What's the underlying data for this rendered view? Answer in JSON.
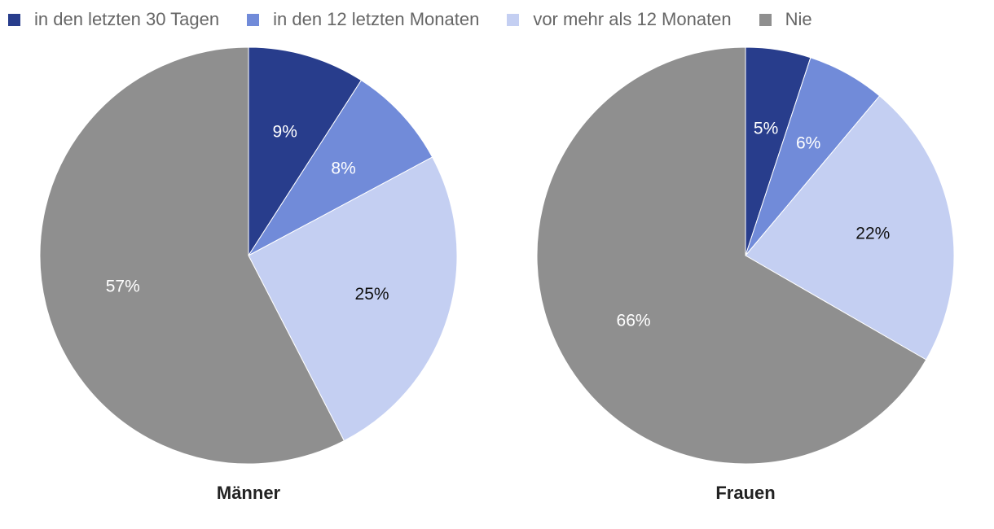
{
  "legend": [
    {
      "label": "in den letzten 30 Tagen",
      "color": "#283d8c"
    },
    {
      "label": "in den 12 letzten Monaten",
      "color": "#718bd9"
    },
    {
      "label": "vor mehr als 12 Monaten",
      "color": "#c4cff2"
    },
    {
      "label": "Nie",
      "color": "#8f8f8f"
    }
  ],
  "chart_data": [
    {
      "type": "pie",
      "title": "Männer",
      "categories": [
        "in den letzten 30 Tagen",
        "in den 12 letzten Monaten",
        "vor mehr als 12 Monaten",
        "Nie"
      ],
      "values": [
        9,
        8,
        25,
        57
      ],
      "labels": [
        "9%",
        "8%",
        "25%",
        "57%"
      ],
      "colors": [
        "#283d8c",
        "#718bd9",
        "#c4cff2",
        "#8f8f8f"
      ],
      "label_colors": [
        "#ffffff",
        "#ffffff",
        "#111111",
        "#ffffff"
      ],
      "legend": "top-left"
    },
    {
      "type": "pie",
      "title": "Frauen",
      "categories": [
        "in den letzten 30 Tagen",
        "in den 12 letzten Monaten",
        "vor mehr als 12 Monaten",
        "Nie"
      ],
      "values": [
        5,
        6,
        22,
        66
      ],
      "labels": [
        "5%",
        "6%",
        "22%",
        "66%"
      ],
      "colors": [
        "#283d8c",
        "#718bd9",
        "#c4cff2",
        "#8f8f8f"
      ],
      "label_colors": [
        "#ffffff",
        "#ffffff",
        "#111111",
        "#ffffff"
      ],
      "legend": "top-left"
    }
  ]
}
